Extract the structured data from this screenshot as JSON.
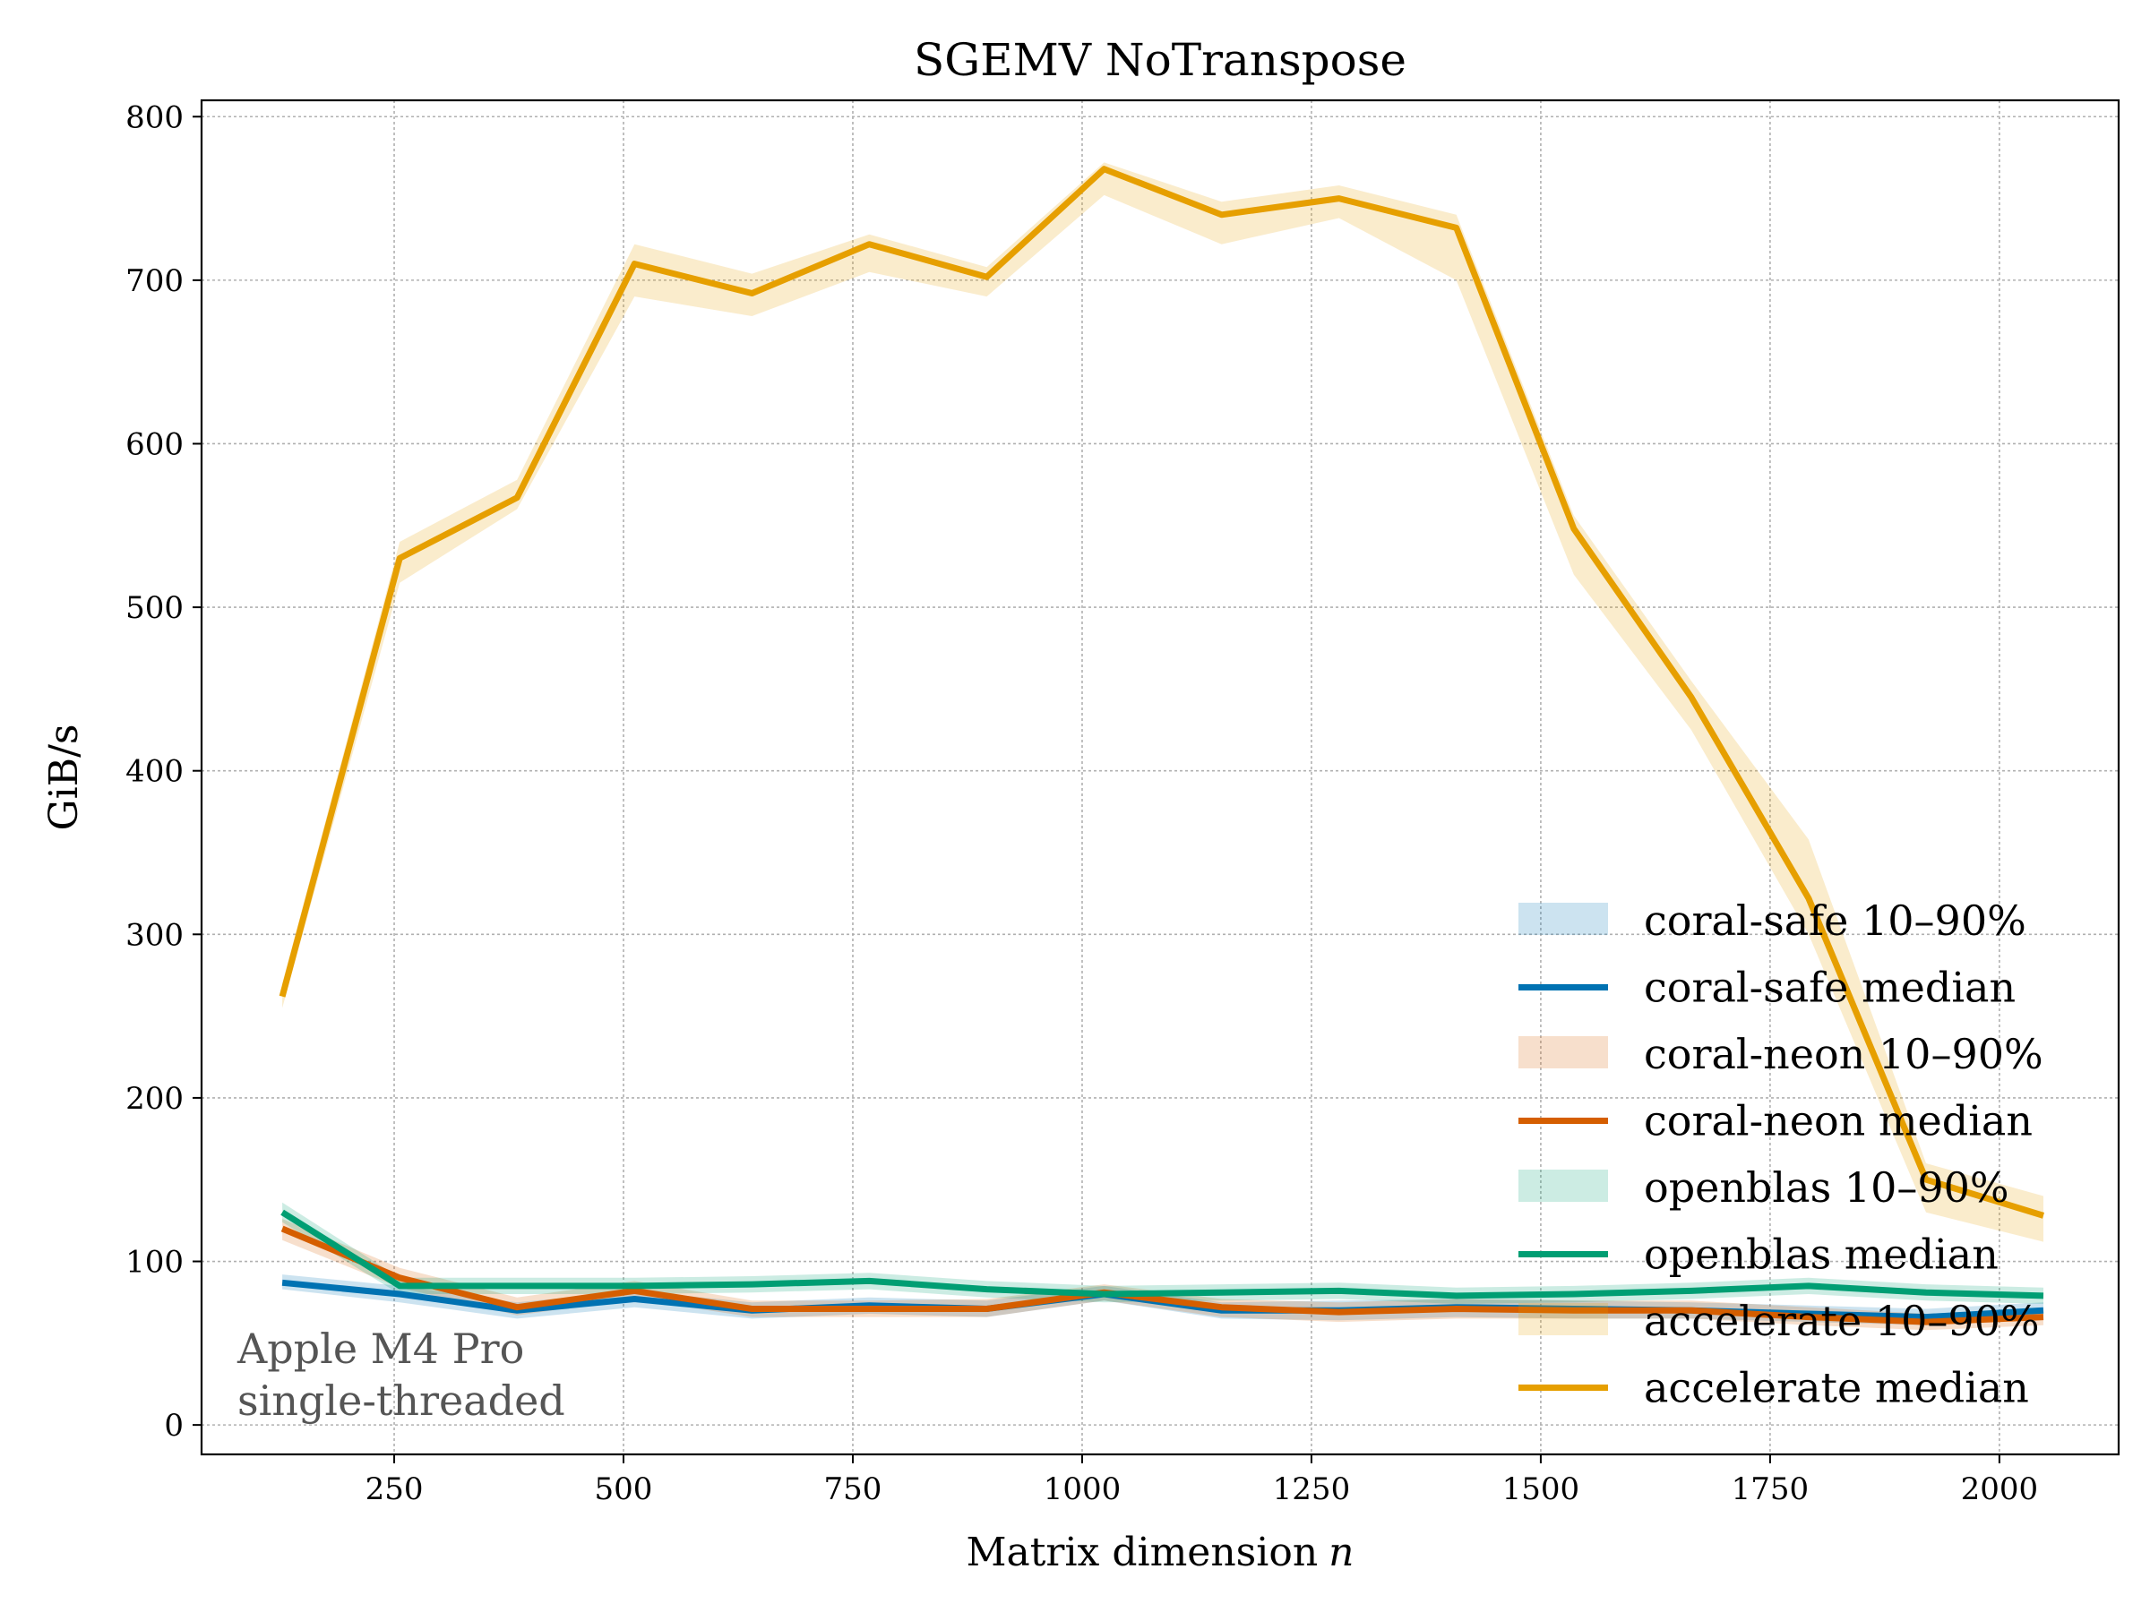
{
  "chart_data": {
    "type": "line",
    "title": "SGEMV NoTranspose",
    "xlabel": "Matrix dimension",
    "xlabel_var": "n",
    "ylabel": "GiB/s",
    "xlim": [
      40,
      2130
    ],
    "ylim": [
      -18,
      810
    ],
    "xticks": [
      250,
      500,
      750,
      1000,
      1250,
      1500,
      1750,
      2000
    ],
    "yticks": [
      0,
      100,
      200,
      300,
      400,
      500,
      600,
      700,
      800
    ],
    "grid": true,
    "legend_position": "lower-right",
    "annotation": [
      "Apple M4 Pro",
      "single-threaded"
    ],
    "x": [
      128,
      256,
      384,
      512,
      640,
      768,
      896,
      1024,
      1152,
      1280,
      1408,
      1536,
      1664,
      1792,
      1920,
      2048
    ],
    "series": [
      {
        "name": "coral-safe",
        "color": "#0072b2",
        "median": [
          87,
          80,
          70,
          77,
          70,
          73,
          71,
          80,
          70,
          70,
          72,
          71,
          70,
          68,
          66,
          70
        ],
        "p10": [
          83,
          75,
          65,
          72,
          65,
          68,
          66,
          76,
          65,
          64,
          66,
          65,
          65,
          63,
          61,
          65
        ],
        "p90": [
          92,
          85,
          75,
          82,
          75,
          78,
          76,
          85,
          75,
          76,
          77,
          76,
          75,
          73,
          71,
          75
        ]
      },
      {
        "name": "coral-neon",
        "color": "#d55e00",
        "median": [
          120,
          90,
          72,
          82,
          71,
          71,
          71,
          81,
          72,
          69,
          71,
          70,
          70,
          66,
          63,
          66
        ],
        "p10": [
          113,
          84,
          67,
          77,
          66,
          66,
          66,
          76,
          66,
          63,
          65,
          65,
          65,
          61,
          58,
          61
        ],
        "p90": [
          126,
          96,
          78,
          88,
          76,
          76,
          77,
          86,
          77,
          75,
          77,
          76,
          76,
          72,
          68,
          71
        ]
      },
      {
        "name": "openblas",
        "color": "#009e73",
        "median": [
          130,
          85,
          85,
          85,
          86,
          88,
          83,
          80,
          81,
          82,
          79,
          80,
          82,
          85,
          81,
          79
        ],
        "p10": [
          124,
          80,
          80,
          80,
          81,
          83,
          78,
          75,
          76,
          77,
          74,
          75,
          77,
          80,
          76,
          74
        ],
        "p90": [
          136,
          90,
          90,
          90,
          91,
          93,
          88,
          85,
          86,
          87,
          84,
          85,
          87,
          90,
          86,
          84
        ]
      },
      {
        "name": "accelerate",
        "color": "#e69f00",
        "median": [
          262,
          530,
          567,
          710,
          692,
          722,
          702,
          768,
          740,
          750,
          732,
          548,
          445,
          322,
          150,
          128
        ],
        "p10": [
          255,
          515,
          560,
          690,
          678,
          705,
          690,
          752,
          722,
          738,
          700,
          520,
          425,
          300,
          130,
          112
        ],
        "p90": [
          270,
          540,
          578,
          722,
          704,
          728,
          708,
          772,
          748,
          758,
          740,
          556,
          455,
          358,
          160,
          140
        ]
      }
    ],
    "legend": [
      "coral-safe 10–90%",
      "coral-safe median",
      "coral-neon 10–90%",
      "coral-neon median",
      "openblas 10–90%",
      "openblas median",
      "accelerate 10–90%",
      "accelerate median"
    ]
  }
}
